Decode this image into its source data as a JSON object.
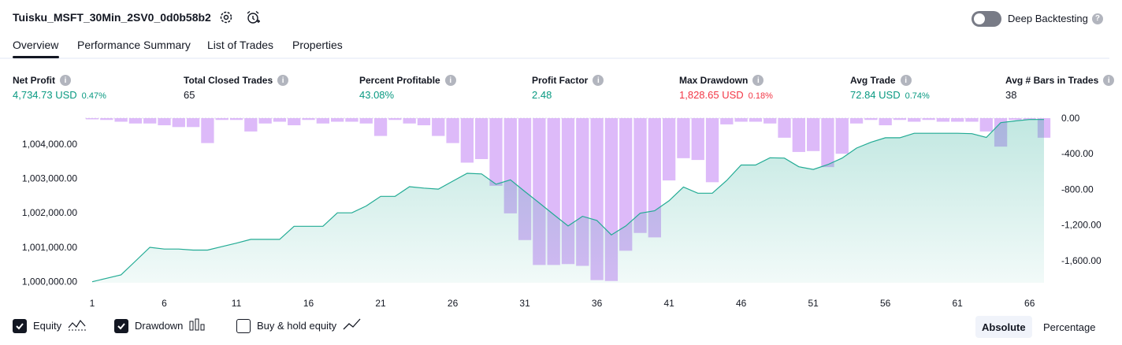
{
  "header": {
    "strategy_name": "Tuisku_MSFT_30Min_2SV0_0d0b58b2",
    "settings_icon": "gear-icon",
    "add_alert_icon": "alarm-plus-icon",
    "deep_backtesting_label": "Deep Backtesting",
    "deep_backtesting_enabled": false
  },
  "tabs": [
    {
      "label": "Overview",
      "active": true
    },
    {
      "label": "Performance Summary",
      "active": false
    },
    {
      "label": "List of Trades",
      "active": false
    },
    {
      "label": "Properties",
      "active": false
    }
  ],
  "metrics": [
    {
      "label": "Net Profit",
      "value": "4,734.73 USD",
      "pct": "0.47%",
      "color": "#089981"
    },
    {
      "label": "Total Closed Trades",
      "value": "65",
      "pct": "",
      "color": "#131722"
    },
    {
      "label": "Percent Profitable",
      "value": "43.08%",
      "pct": "",
      "color": "#089981"
    },
    {
      "label": "Profit Factor",
      "value": "2.48",
      "pct": "",
      "color": "#089981"
    },
    {
      "label": "Max Drawdown",
      "value": "1,828.65 USD",
      "pct": "0.18%",
      "color": "#f23645"
    },
    {
      "label": "Avg Trade",
      "value": "72.84 USD",
      "pct": "0.74%",
      "color": "#089981"
    },
    {
      "label": "Avg # Bars in Trades",
      "value": "38",
      "pct": "",
      "color": "#131722"
    }
  ],
  "chart_data": {
    "type": "area",
    "x_ticks": [
      1,
      6,
      11,
      16,
      21,
      26,
      31,
      36,
      41,
      46,
      51,
      56,
      61,
      66
    ],
    "left_axis": {
      "ticks": [
        "1,000,000.00",
        "1,001,000.00",
        "1,002,000.00",
        "1,003,000.00",
        "1,004,000.00"
      ],
      "ylim": [
        999970,
        1004750
      ]
    },
    "right_axis": {
      "ticks": [
        "0.00",
        "-400.00",
        "-800.00",
        "-1,200.00",
        "-1,600.00"
      ],
      "ylim": [
        -1850,
        0
      ]
    },
    "equity_color": "#22ab94",
    "drawdown_color": "#d1a3f7",
    "equity": [
      1000000,
      1000100,
      1000200,
      1000600,
      1001000,
      1000950,
      1000950,
      1000920,
      1000920,
      1001020,
      1001120,
      1001230,
      1001230,
      1001230,
      1001610,
      1001610,
      1001610,
      1002000,
      1002000,
      1002200,
      1002480,
      1002480,
      1002760,
      1002720,
      1002690,
      1002920,
      1003150,
      1003130,
      1002830,
      1002960,
      1002620,
      1002290,
      1001950,
      1001620,
      1001900,
      1001780,
      1001360,
      1001620,
      1001990,
      1002060,
      1002350,
      1002750,
      1002570,
      1002570,
      1002940,
      1003390,
      1003390,
      1003600,
      1003590,
      1003340,
      1003260,
      1003400,
      1003590,
      1003880,
      1004050,
      1004180,
      1004180,
      1004310,
      1004310,
      1004310,
      1004310,
      1004300,
      1004190,
      1004620,
      1004670,
      1004710,
      1004710
    ],
    "drawdown": [
      0,
      -20,
      -40,
      -60,
      -60,
      -80,
      -100,
      -100,
      -280,
      -20,
      -20,
      -150,
      -60,
      -40,
      -80,
      -20,
      -60,
      -40,
      -40,
      -60,
      -200,
      -20,
      -60,
      -80,
      -200,
      -280,
      -500,
      -460,
      -760,
      -1070,
      -1370,
      -1650,
      -1650,
      -1640,
      -1660,
      -1820,
      -1830,
      -1490,
      -1290,
      -1340,
      -700,
      -450,
      -470,
      -720,
      -70,
      -40,
      -40,
      -60,
      -220,
      -380,
      -370,
      -550,
      -400,
      -60,
      -20,
      -80,
      -20,
      -40,
      -20,
      -40,
      -40,
      -40,
      -150,
      -320,
      -20,
      -20,
      -220
    ]
  },
  "legend": [
    {
      "label": "Equity",
      "checked": true,
      "icon": "area-line-icon"
    },
    {
      "label": "Drawdown",
      "checked": true,
      "icon": "bar-chart-icon"
    },
    {
      "label": "Buy & hold equity",
      "checked": false,
      "icon": "line-chart-icon"
    }
  ],
  "modes": [
    {
      "label": "Absolute",
      "active": true
    },
    {
      "label": "Percentage",
      "active": false
    }
  ]
}
